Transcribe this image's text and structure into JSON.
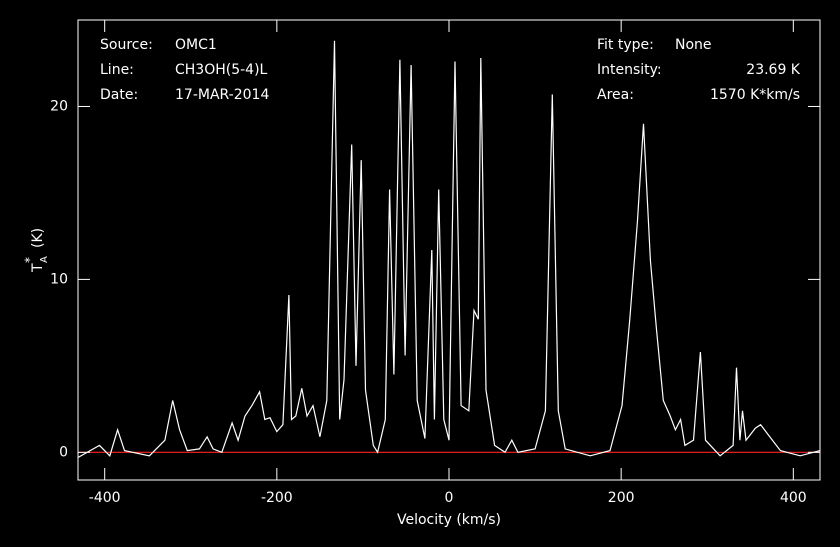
{
  "chart_data": {
    "type": "line",
    "x_label": "Velocity (km/s)",
    "y_label": {
      "main": "T",
      "sub": "A",
      "sup": "*",
      "unit": "(K)"
    },
    "info_left": [
      {
        "label": "Source:",
        "value": "OMC1"
      },
      {
        "label": "Line:",
        "value": "CH3OH(5-4)L"
      },
      {
        "label": "Date:",
        "value": "17-MAR-2014"
      }
    ],
    "info_right": [
      {
        "label": "Fit type:",
        "value": "None"
      },
      {
        "label": "Intensity:",
        "value": "23.69 K"
      },
      {
        "label": "Area:",
        "value": "1570 K*km/s"
      }
    ],
    "xlim": [
      -431,
      431
    ],
    "ylim": [
      -1.6,
      25
    ],
    "xticks": [
      -400,
      -200,
      0,
      200,
      400
    ],
    "yticks": [
      0,
      10,
      20
    ],
    "baseline": {
      "value": 0,
      "color": "#ff2020"
    },
    "series": [
      {
        "name": "spectrum",
        "color": "#ffffff",
        "x": [
          -431,
          -406,
          -394,
          -385,
          -377,
          -348,
          -330,
          -321,
          -313,
          -304,
          -290,
          -281,
          -274,
          -264,
          -252,
          -245,
          -237,
          -229,
          -220,
          -214,
          -208,
          -200,
          -193,
          -186,
          -183,
          -178,
          -171,
          -165,
          -158,
          -150,
          -142,
          -133,
          -127,
          -122,
          -113,
          -108,
          -102,
          -97,
          -88,
          -83,
          -74,
          -69,
          -64,
          -57,
          -51,
          -44,
          -37,
          -28,
          -20,
          -17,
          -12,
          -6,
          0,
          7,
          14,
          23,
          29,
          34,
          37,
          43,
          53,
          65,
          73,
          80,
          100,
          112,
          120,
          127,
          135,
          164,
          187,
          201,
          210,
          219,
          226,
          234,
          241,
          249,
          257,
          263,
          269,
          274,
          284,
          292,
          298,
          315,
          330,
          334,
          338,
          341,
          345,
          356,
          362,
          371,
          385,
          408,
          431
        ],
        "values": [
          -0.3,
          0.4,
          -0.2,
          1.3,
          0.1,
          -0.2,
          0.7,
          3.0,
          1.3,
          0.1,
          0.2,
          0.9,
          0.2,
          0,
          1.7,
          0.7,
          2.1,
          2.7,
          3.5,
          1.9,
          2.0,
          1.2,
          1.6,
          9.1,
          1.9,
          2.1,
          3.7,
          2.1,
          2.7,
          0.9,
          3.0,
          23.8,
          1.9,
          4.2,
          17.8,
          5.0,
          16.9,
          3.6,
          0.4,
          0,
          1.9,
          15.2,
          4.5,
          22.7,
          5.6,
          22.4,
          3.0,
          0.8,
          11.7,
          1.9,
          15.2,
          1.9,
          0.7,
          22.6,
          2.7,
          2.4,
          8.2,
          7.7,
          22.8,
          3.6,
          0.4,
          0,
          0.7,
          0,
          0.2,
          2.4,
          20.7,
          2.4,
          0.2,
          -0.2,
          0.1,
          2.7,
          7.7,
          13.4,
          19.0,
          11.1,
          7.1,
          3.0,
          2.1,
          1.3,
          1.9,
          0.4,
          0.7,
          5.8,
          0.7,
          -0.2,
          0.4,
          4.9,
          0.7,
          2.4,
          0.7,
          1.4,
          1.6,
          1.0,
          0.1,
          -0.2,
          0.1
        ]
      }
    ]
  }
}
